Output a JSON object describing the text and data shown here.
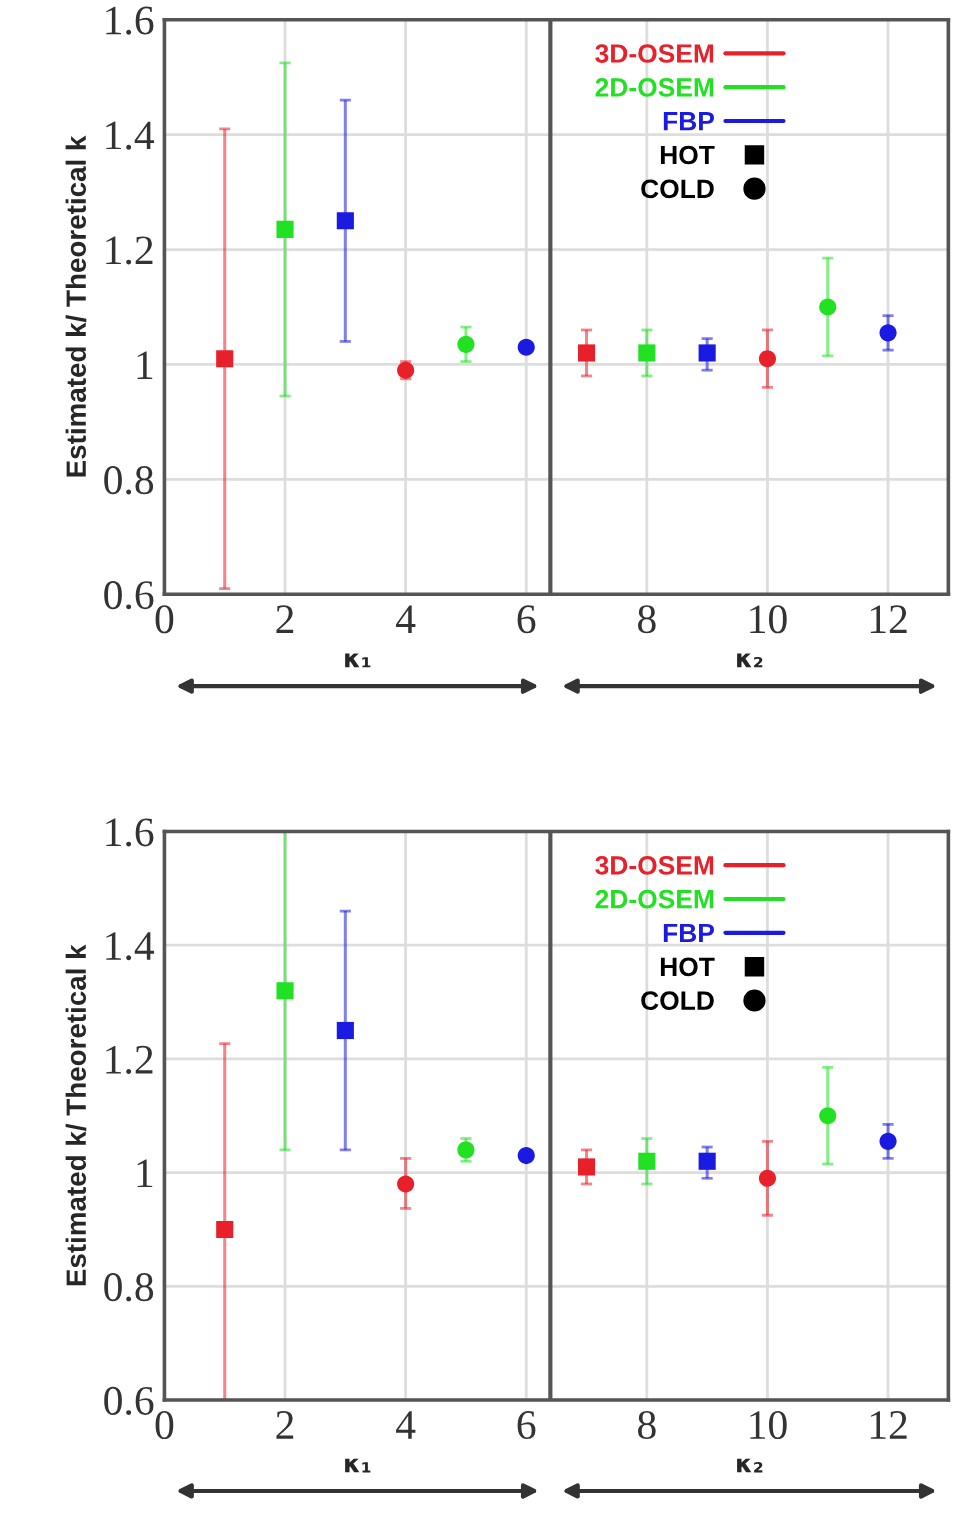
{
  "chart_data": [
    {
      "type": "scatter",
      "ylabel": "Estimated k/ Theoretical k",
      "xlim": [
        0,
        13
      ],
      "xticks": [
        0,
        2,
        4,
        6,
        8,
        10,
        12
      ],
      "ylim": [
        0.6,
        1.6
      ],
      "yticks": [
        0.6,
        0.8,
        1,
        1.2,
        1.4,
        1.6
      ],
      "grid": true,
      "legend": "top right",
      "annotations": [
        "HOT",
        "COLD",
        "κ₁",
        "κ₂"
      ],
      "ref_lines": [
        {
          "axis": "x",
          "value": 6.4,
          "color": "#555555"
        }
      ],
      "series": [
        {
          "name": "3D-OSEM",
          "color": "#e8202a",
          "marker": "square",
          "x": [
            1,
            7
          ],
          "values": [
            1.01,
            1.02
          ],
          "errors": [
            [
              0.61,
              1.41
            ],
            [
              0.98,
              1.06
            ]
          ]
        },
        {
          "name": "2D-OSEM",
          "color": "#22e022",
          "marker": "square",
          "x": [
            2,
            8
          ],
          "values": [
            1.235,
            1.02
          ],
          "errors": [
            [
              0.945,
              1.525
            ],
            [
              0.98,
              1.06
            ]
          ]
        },
        {
          "name": "FBP",
          "color": "#1a1ae0",
          "marker": "square",
          "x": [
            3,
            9
          ],
          "values": [
            1.25,
            1.02
          ],
          "errors": [
            [
              1.04,
              1.46
            ],
            [
              0.99,
              1.045
            ]
          ]
        },
        {
          "color": "#e8202a",
          "marker": "circle",
          "x": [
            4,
            10
          ],
          "values": [
            0.99,
            1.01
          ],
          "errors": [
            [
              0.975,
              1.005
            ],
            [
              0.96,
              1.06
            ]
          ]
        },
        {
          "color": "#22e022",
          "marker": "circle",
          "x": [
            5,
            11
          ],
          "values": [
            1.035,
            1.1
          ],
          "errors": [
            [
              1.005,
              1.065
            ],
            [
              1.015,
              1.185
            ]
          ]
        },
        {
          "color": "#1a1ae0",
          "marker": "circle",
          "x": [
            6,
            12
          ],
          "values": [
            1.03,
            1.055
          ],
          "errors": [
            null,
            [
              1.025,
              1.085
            ]
          ]
        }
      ]
    },
    {
      "type": "scatter",
      "ylabel": "Estimated k/ Theoretical k",
      "xlim": [
        0,
        13
      ],
      "xticks": [
        0,
        2,
        4,
        6,
        8,
        10,
        12
      ],
      "ylim": [
        0.6,
        1.6
      ],
      "yticks": [
        0.6,
        0.8,
        1,
        1.2,
        1.4,
        1.6
      ],
      "grid": true,
      "legend": "top right",
      "annotations": [
        "HOT",
        "COLD",
        "κ₁",
        "κ₂"
      ],
      "ref_lines": [
        {
          "axis": "x",
          "value": 6.4,
          "color": "#555555"
        }
      ],
      "series": [
        {
          "name": "3D-OSEM",
          "color": "#e8202a",
          "marker": "square",
          "x": [
            1,
            7
          ],
          "values": [
            0.9,
            1.01
          ],
          "errors": [
            [
              0.6,
              1.227
            ],
            [
              0.98,
              1.04
            ]
          ]
        },
        {
          "name": "2D-OSEM",
          "color": "#22e022",
          "marker": "square",
          "x": [
            2,
            8
          ],
          "values": [
            1.32,
            1.02
          ],
          "errors": [
            [
              1.04,
              1.6
            ],
            [
              0.98,
              1.06
            ]
          ]
        },
        {
          "name": "FBP",
          "color": "#1a1ae0",
          "marker": "square",
          "x": [
            3,
            9
          ],
          "values": [
            1.25,
            1.02
          ],
          "errors": [
            [
              1.04,
              1.46
            ],
            [
              0.99,
              1.045
            ]
          ]
        },
        {
          "color": "#e8202a",
          "marker": "circle",
          "x": [
            4,
            10
          ],
          "values": [
            0.98,
            0.99
          ],
          "errors": [
            [
              0.937,
              1.025
            ],
            [
              0.925,
              1.055
            ]
          ]
        },
        {
          "color": "#22e022",
          "marker": "circle",
          "x": [
            5,
            11
          ],
          "values": [
            1.04,
            1.1
          ],
          "errors": [
            [
              1.02,
              1.06
            ],
            [
              1.015,
              1.185
            ]
          ]
        },
        {
          "color": "#1a1ae0",
          "marker": "circle",
          "x": [
            6,
            12
          ],
          "values": [
            1.03,
            1.055
          ],
          "errors": [
            null,
            [
              1.025,
              1.085
            ]
          ]
        }
      ]
    }
  ]
}
